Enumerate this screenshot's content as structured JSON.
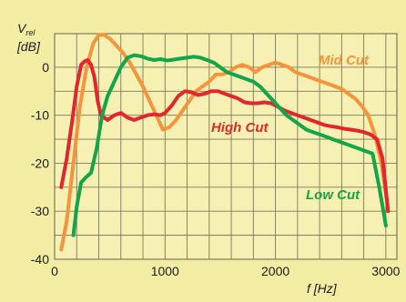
{
  "chart_data": {
    "type": "line",
    "ylabel_symbol": "V",
    "ylabel_subscript": "rel",
    "ylabel_unit": "[dB]",
    "xlabel": "f [Hz]",
    "xlim": [
      0,
      3100
    ],
    "ylim": [
      -40,
      7
    ],
    "x_ticks": [
      0,
      1000,
      2000,
      3000
    ],
    "y_ticks": [
      0,
      -10,
      -20,
      -30,
      -40
    ],
    "grid": true,
    "colors": {
      "background": "#f3eda4",
      "plot_area": "#f6f0b3",
      "grid": "#7d7a5a",
      "mid_cut": "#f4953e",
      "high_cut": "#e3262b",
      "low_cut": "#12a54a"
    },
    "series": [
      {
        "name": "Mid Cut",
        "color": "#f4953e",
        "x": [
          60,
          110,
          170,
          230,
          290,
          350,
          400,
          440,
          500,
          560,
          620,
          680,
          740,
          800,
          860,
          920,
          980,
          1040,
          1100,
          1160,
          1220,
          1280,
          1340,
          1400,
          1460,
          1520,
          1580,
          1640,
          1700,
          1760,
          1820,
          1880,
          1940,
          2000,
          2060,
          2120,
          2180,
          2240,
          2300,
          2360,
          2420,
          2480,
          2540,
          2600,
          2660,
          2720,
          2780,
          2840,
          2900,
          2960,
          3010
        ],
        "values": [
          -38,
          -32,
          -20,
          -8,
          0,
          5,
          6.7,
          6.8,
          6,
          4.5,
          3,
          1,
          -1.5,
          -4,
          -7,
          -10,
          -13,
          -12.5,
          -11,
          -9,
          -7,
          -5,
          -4,
          -3,
          -1.5,
          -1.5,
          -1,
          0,
          0.5,
          0,
          -1,
          0,
          0.5,
          1,
          0.5,
          0,
          -1,
          -1.5,
          -2,
          -2.5,
          -3,
          -3.5,
          -4,
          -4.5,
          -5.5,
          -6.5,
          -8,
          -10,
          -14,
          -20,
          -28
        ]
      },
      {
        "name": "High Cut",
        "color": "#e3262b",
        "x": [
          60,
          110,
          160,
          200,
          240,
          270,
          300,
          330,
          360,
          390,
          420,
          480,
          540,
          600,
          660,
          720,
          780,
          840,
          900,
          960,
          1000,
          1060,
          1120,
          1180,
          1240,
          1300,
          1360,
          1420,
          1480,
          1540,
          1600,
          1660,
          1720,
          1780,
          1840,
          1900,
          1960,
          2020,
          2080,
          2140,
          2200,
          2260,
          2320,
          2380,
          2440,
          2500,
          2560,
          2620,
          2680,
          2740,
          2800,
          2860,
          2920,
          2970,
          3020
        ],
        "values": [
          -25,
          -19,
          -11,
          -4,
          0.5,
          1.2,
          1.5,
          0.5,
          -2,
          -7,
          -10,
          -11,
          -10,
          -9.5,
          -10.5,
          -11,
          -10.5,
          -10,
          -9.8,
          -10,
          -9.5,
          -8,
          -6,
          -5,
          -5.2,
          -5.8,
          -5.5,
          -5,
          -5,
          -5.5,
          -6,
          -6.5,
          -7.3,
          -7.5,
          -7.5,
          -7.3,
          -7.5,
          -8.2,
          -9,
          -9.5,
          -10,
          -10.5,
          -11,
          -11.5,
          -12,
          -12.3,
          -12.5,
          -12.8,
          -13,
          -13.2,
          -13.5,
          -14,
          -15,
          -19,
          -30
        ]
      },
      {
        "name": "Low Cut",
        "color": "#12a54a",
        "x": [
          170,
          200,
          240,
          280,
          330,
          380,
          430,
          480,
          540,
          600,
          660,
          720,
          780,
          840,
          900,
          960,
          1020,
          1080,
          1140,
          1200,
          1260,
          1320,
          1380,
          1440,
          1500,
          1560,
          1620,
          1680,
          1740,
          1800,
          1860,
          1920,
          1980,
          2040,
          2100,
          2160,
          2220,
          2280,
          2340,
          2400,
          2460,
          2520,
          2580,
          2640,
          2700,
          2760,
          2820,
          2880,
          2940,
          3000
        ],
        "values": [
          -35,
          -29,
          -24,
          -23,
          -22,
          -17,
          -10,
          -6,
          -3,
          0,
          2,
          2.5,
          2.3,
          1.8,
          1.5,
          1.7,
          1.4,
          1.6,
          1.8,
          2,
          2.2,
          2,
          1.5,
          1,
          0,
          -1,
          -1.5,
          -2,
          -2.5,
          -3,
          -4,
          -5.5,
          -7,
          -8.5,
          -10,
          -11,
          -12,
          -13,
          -13.5,
          -14,
          -14.5,
          -15,
          -15.5,
          -16,
          -16.5,
          -17,
          -17.5,
          -18,
          -25,
          -33
        ]
      }
    ]
  }
}
